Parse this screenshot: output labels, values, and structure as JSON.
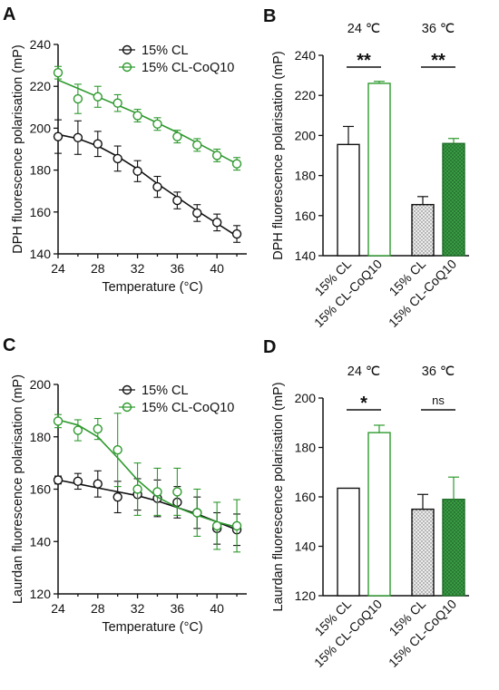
{
  "panels": {
    "A": "A",
    "B": "B",
    "C": "C",
    "D": "D"
  },
  "colors": {
    "cl": "#111111",
    "coq10": "#2e9a2e",
    "cl_fill_36": "#d9d9d9",
    "coq10_fill_36": "#2f8f3a"
  },
  "chart_data": [
    {
      "id": "A",
      "type": "scatter",
      "xlabel": "Temperature (°C)",
      "ylabel": "DPH fluorescence polarisation (mP)",
      "xlim": [
        24,
        43
      ],
      "ylim": [
        140,
        240
      ],
      "xticks": [
        24,
        28,
        32,
        36,
        40
      ],
      "yticks": [
        140,
        160,
        180,
        200,
        220,
        240
      ],
      "legend": "top-right",
      "series": [
        {
          "name": "15% CL",
          "color": "#111111",
          "x": [
            24,
            26,
            28,
            30,
            32,
            34,
            36,
            38,
            40,
            42
          ],
          "y": [
            196,
            195.5,
            192.5,
            185.5,
            179.5,
            172,
            165.5,
            159.5,
            155,
            149.5
          ],
          "err": [
            8,
            8,
            6,
            6,
            5,
            5,
            4,
            4,
            4,
            4
          ],
          "fit_y": [
            197,
            195,
            191.5,
            186.5,
            180.5,
            173.5,
            167,
            160.5,
            154.5,
            148.5
          ]
        },
        {
          "name": "15% CL-CoQ10",
          "color": "#2e9a2e",
          "x": [
            24,
            26,
            28,
            30,
            32,
            34,
            36,
            38,
            40,
            42
          ],
          "y": [
            226.5,
            214,
            215,
            212,
            206,
            202,
            196,
            192,
            187,
            183
          ],
          "err": [
            3,
            7,
            5,
            4,
            3,
            3,
            3,
            3,
            3,
            3
          ],
          "fit_y": [
            223,
            219,
            215,
            211,
            207,
            202.5,
            198,
            193,
            188,
            183
          ]
        }
      ]
    },
    {
      "id": "B",
      "type": "bar",
      "ylabel": "DPH fluorescence polarisation (mP)",
      "ylim": [
        140,
        240
      ],
      "yticks": [
        140,
        160,
        180,
        200,
        220,
        240
      ],
      "categories": [
        "15% CL",
        "15% CL-CoQ10",
        "15% CL",
        "15% CL-CoQ10"
      ],
      "values": [
        195.5,
        226,
        165.5,
        196
      ],
      "errors": [
        9,
        1,
        4,
        2.5
      ],
      "groups": [
        {
          "label": "24 ℃",
          "significance": "**"
        },
        {
          "label": "36 ℃",
          "significance": "**"
        }
      ]
    },
    {
      "id": "C",
      "type": "scatter",
      "xlabel": "Temperature (°C)",
      "ylabel": "Laurdan fluorescence polarisation (mP)",
      "xlim": [
        24,
        43
      ],
      "ylim": [
        120,
        200
      ],
      "xticks": [
        24,
        28,
        32,
        36,
        40
      ],
      "yticks": [
        120,
        140,
        160,
        180,
        200
      ],
      "legend": "top-right",
      "series": [
        {
          "name": "15% CL",
          "color": "#111111",
          "x": [
            24,
            26,
            28,
            30,
            32,
            34,
            36,
            38,
            40,
            42
          ],
          "y": [
            163.5,
            163,
            162,
            157,
            158,
            156.5,
            155,
            151,
            145,
            144.5
          ],
          "err": [
            1.5,
            3,
            5,
            6,
            6,
            7,
            6,
            6,
            6,
            6
          ],
          "fit_y": [
            163.5,
            162,
            160.5,
            159,
            157.5,
            155.5,
            153,
            150.5,
            147.5,
            144.5
          ]
        },
        {
          "name": "15% CL-CoQ10",
          "color": "#2e9a2e",
          "x": [
            24,
            26,
            28,
            30,
            32,
            34,
            36,
            38,
            40,
            42
          ],
          "y": [
            186,
            182.5,
            183,
            175,
            160,
            159,
            159,
            151,
            146,
            146
          ],
          "err": [
            2.5,
            4,
            4,
            14,
            10,
            9,
            9,
            9,
            9,
            10
          ],
          "fit_y": [
            186.5,
            184.5,
            180,
            172,
            163.5,
            157,
            153,
            150,
            147.5,
            145.5
          ]
        }
      ]
    },
    {
      "id": "D",
      "type": "bar",
      "ylabel": "Laurdan fluorescence polarisation (mP)",
      "ylim": [
        120,
        200
      ],
      "yticks": [
        120,
        140,
        160,
        180,
        200
      ],
      "categories": [
        "15% CL",
        "15% CL-CoQ10",
        "15% CL",
        "15% CL-CoQ10"
      ],
      "values": [
        163.5,
        186,
        155,
        159
      ],
      "errors": [
        0,
        3,
        6,
        9
      ],
      "groups": [
        {
          "label": "24 ℃",
          "significance": "*"
        },
        {
          "label": "36 ℃",
          "significance": "ns"
        }
      ]
    }
  ]
}
